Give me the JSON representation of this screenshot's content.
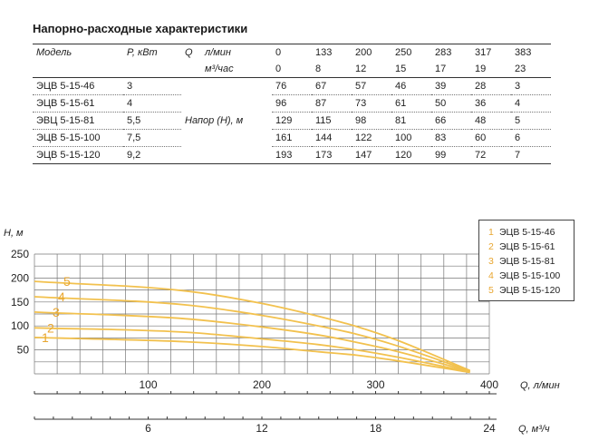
{
  "title": "Напорно-расходные характеристики",
  "table": {
    "model_header": "Модель",
    "power_header": "P, кВт",
    "q_header": "Q",
    "unit_lmin": "л/мин",
    "unit_m3h": "м³/час",
    "head_label": "Напор (H), м",
    "flow_lmin": [
      "0",
      "133",
      "200",
      "250",
      "283",
      "317",
      "383"
    ],
    "flow_m3h": [
      "0",
      "8",
      "12",
      "15",
      "17",
      "19",
      "23"
    ],
    "rows": [
      {
        "model": "ЭЦВ 5-15-46",
        "power": "3",
        "heads": [
          "76",
          "67",
          "57",
          "46",
          "39",
          "28",
          "3"
        ]
      },
      {
        "model": "ЭЦВ 5-15-61",
        "power": "4",
        "heads": [
          "96",
          "87",
          "73",
          "61",
          "50",
          "36",
          "4"
        ]
      },
      {
        "model": "ЭВЦ 5-15-81",
        "power": "5,5",
        "heads": [
          "129",
          "115",
          "98",
          "81",
          "66",
          "48",
          "5"
        ]
      },
      {
        "model": "ЭЦВ 5-15-100",
        "power": "7,5",
        "heads": [
          "161",
          "144",
          "122",
          "100",
          "83",
          "60",
          "6"
        ]
      },
      {
        "model": "ЭЦВ 5-15-120",
        "power": "9,2",
        "heads": [
          "193",
          "173",
          "147",
          "120",
          "99",
          "72",
          "7"
        ]
      }
    ]
  },
  "chart_data": {
    "type": "line",
    "ylabel": "H, м",
    "xlabel": "Q, л/мин",
    "x2label": "Q, м³/ч",
    "ylim": [
      0,
      250
    ],
    "xlim": [
      0,
      400
    ],
    "yticks": [
      "50",
      "100",
      "150",
      "200",
      "250"
    ],
    "xticks": [
      "100",
      "200",
      "300",
      "400"
    ],
    "x2ticks": [
      "6",
      "12",
      "18",
      "24"
    ],
    "grid": true,
    "legend_position": "top-right",
    "line_color": "#f2c14e",
    "label_color": "#e8a630",
    "x": [
      0,
      133,
      200,
      250,
      283,
      317,
      383
    ],
    "series": [
      {
        "label": "1",
        "name": "ЭЦВ 5-15-46",
        "values": [
          76,
          67,
          57,
          46,
          39,
          28,
          3
        ]
      },
      {
        "label": "2",
        "name": "ЭЦВ 5-15-61",
        "values": [
          96,
          87,
          73,
          61,
          50,
          36,
          4
        ]
      },
      {
        "label": "3",
        "name": "ЭЦВ 5-15-81",
        "values": [
          129,
          115,
          98,
          81,
          66,
          48,
          5
        ]
      },
      {
        "label": "4",
        "name": "ЭЦВ 5-15-100",
        "values": [
          161,
          144,
          122,
          100,
          83,
          60,
          6
        ]
      },
      {
        "label": "5",
        "name": "ЭЦВ 5-15-120",
        "values": [
          193,
          173,
          147,
          120,
          99,
          72,
          7
        ]
      }
    ]
  }
}
